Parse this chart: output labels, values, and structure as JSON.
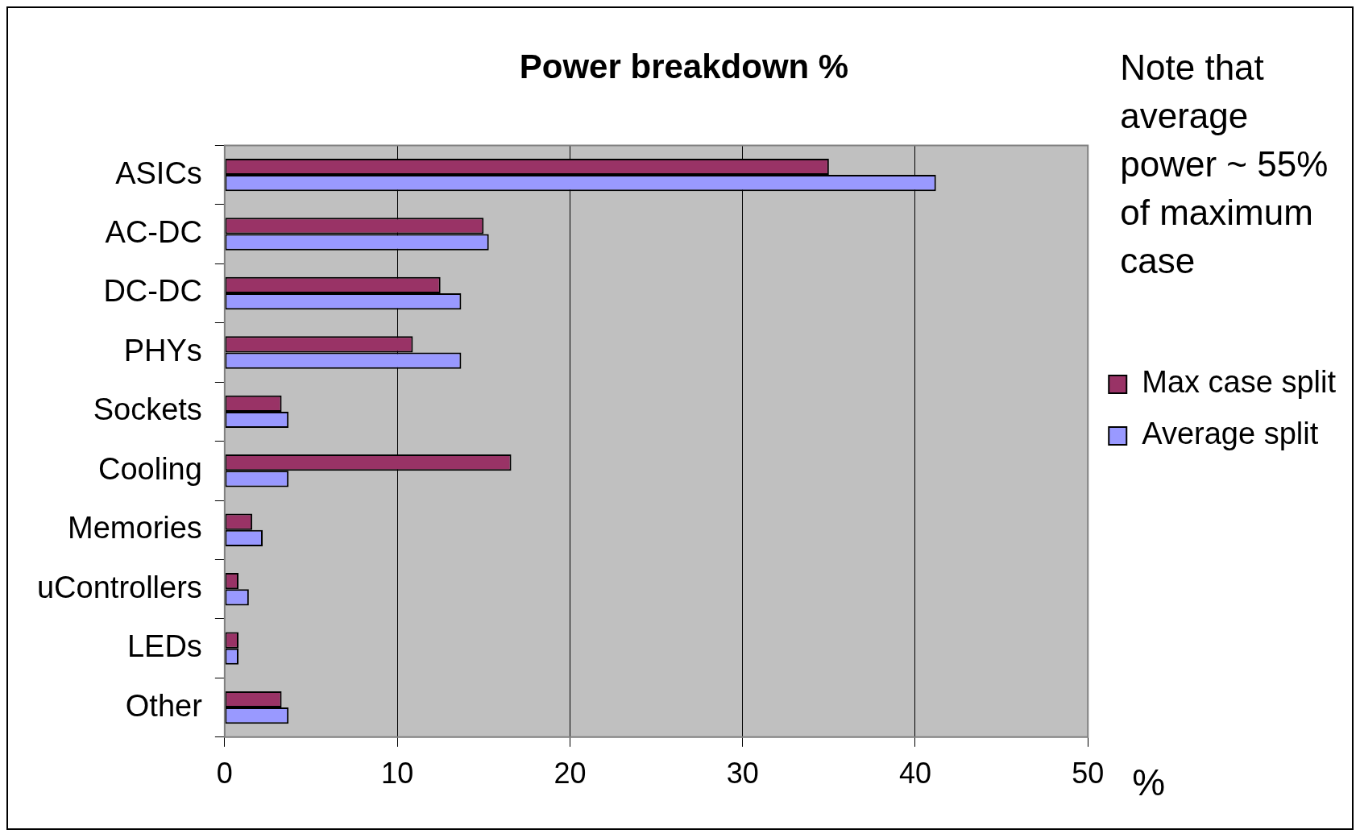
{
  "chart_data": {
    "type": "bar",
    "orientation": "horizontal",
    "title": "Power breakdown %",
    "xlabel": "%",
    "categories": [
      "ASICs",
      "AC-DC",
      "DC-DC",
      "PHYs",
      "Sockets",
      "Cooling",
      "Memories",
      "uControllers",
      "LEDs",
      "Other"
    ],
    "series": [
      {
        "name": "Max case split",
        "color": "#993366",
        "values": [
          35.0,
          15.0,
          12.5,
          10.9,
          3.3,
          16.6,
          1.6,
          0.8,
          0.8,
          3.3
        ]
      },
      {
        "name": "Average split",
        "color": "#9999ff",
        "values": [
          41.2,
          15.3,
          13.7,
          13.7,
          3.7,
          3.7,
          2.2,
          1.4,
          0.8,
          3.7
        ]
      }
    ],
    "xlim": [
      0,
      50
    ],
    "xticks": [
      0,
      10,
      20,
      30,
      40,
      50
    ],
    "grid": "x",
    "legend": "right",
    "annotations": [
      "Note that average power ~ 55% of maximum case"
    ]
  }
}
